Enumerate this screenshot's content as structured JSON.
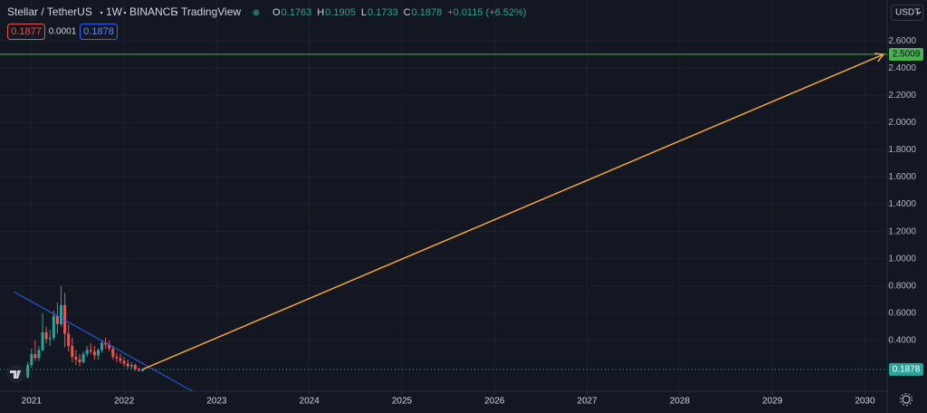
{
  "chart_data": {
    "type": "candlestick",
    "symbol": "Stellar / TetherUS",
    "interval": "1W",
    "exchange": "BINANCE",
    "source": "TradingView",
    "ohlc": [
      {
        "label": "O",
        "value": 0.1763
      },
      {
        "label": "H",
        "value": 0.1905
      },
      {
        "label": "L",
        "value": 0.1733
      },
      {
        "label": "C",
        "value": 0.1878
      }
    ],
    "change": "+0.0115 (+6.52%)",
    "sell": 0.1877,
    "spread": 0.0001,
    "buy": 0.1878,
    "currency": "USDT",
    "x": [
      2020.96,
      2021.0,
      2021.04,
      2021.08,
      2021.12,
      2021.16,
      2021.2,
      2021.24,
      2021.28,
      2021.32,
      2021.36,
      2021.4,
      2021.44,
      2021.48,
      2021.52,
      2021.56,
      2021.6,
      2021.64,
      2021.68,
      2021.72,
      2021.76,
      2021.8,
      2021.84,
      2021.88,
      2021.92,
      2021.96,
      2022.0,
      2022.04,
      2022.08,
      2022.12,
      2022.16,
      2022.2
    ],
    "open": [
      0.13,
      0.22,
      0.3,
      0.27,
      0.33,
      0.46,
      0.41,
      0.42,
      0.58,
      0.52,
      0.66,
      0.45,
      0.36,
      0.28,
      0.26,
      0.24,
      0.3,
      0.33,
      0.32,
      0.29,
      0.33,
      0.38,
      0.37,
      0.34,
      0.28,
      0.27,
      0.25,
      0.23,
      0.21,
      0.22,
      0.19,
      0.1763
    ],
    "high": [
      0.24,
      0.34,
      0.4,
      0.36,
      0.6,
      0.5,
      0.48,
      0.62,
      0.68,
      0.8,
      0.75,
      0.52,
      0.42,
      0.33,
      0.3,
      0.32,
      0.36,
      0.38,
      0.36,
      0.34,
      0.4,
      0.42,
      0.4,
      0.36,
      0.31,
      0.3,
      0.28,
      0.26,
      0.24,
      0.23,
      0.2,
      0.1905
    ],
    "low": [
      0.12,
      0.2,
      0.25,
      0.25,
      0.32,
      0.38,
      0.36,
      0.4,
      0.45,
      0.5,
      0.35,
      0.32,
      0.24,
      0.22,
      0.21,
      0.23,
      0.28,
      0.3,
      0.26,
      0.26,
      0.31,
      0.34,
      0.32,
      0.26,
      0.24,
      0.23,
      0.21,
      0.19,
      0.19,
      0.18,
      0.17,
      0.1733
    ],
    "close": [
      0.22,
      0.3,
      0.27,
      0.33,
      0.46,
      0.41,
      0.42,
      0.58,
      0.52,
      0.66,
      0.45,
      0.36,
      0.28,
      0.26,
      0.24,
      0.3,
      0.33,
      0.32,
      0.29,
      0.33,
      0.38,
      0.37,
      0.34,
      0.28,
      0.27,
      0.25,
      0.23,
      0.21,
      0.22,
      0.19,
      0.18,
      0.1878
    ],
    "up_color": "#26a69a",
    "down_color": "#ef5350",
    "last_price": 0.1878,
    "hline": {
      "value": 2.5009,
      "color": "#4caf50"
    },
    "arrow": {
      "x": [
        2022.2,
        2030.2
      ],
      "y": [
        0.1878,
        2.5009
      ],
      "color": "#f7a531"
    },
    "trendline": {
      "x": [
        2020.81,
        2022.74
      ],
      "y": [
        0.757,
        0.027
      ],
      "color": "#2962ff"
    },
    "xlim": [
      2020.66,
      2030.24
    ],
    "ylim": [
      0.027,
      2.9
    ],
    "xticks": [
      2021,
      2022,
      2023,
      2024,
      2025,
      2026,
      2027,
      2028,
      2029,
      2030
    ],
    "yticks": [
      {
        "value": 0.4,
        "label": "0.4000"
      },
      {
        "value": 0.6,
        "label": "0.6000"
      },
      {
        "value": 0.8,
        "label": "0.8000"
      },
      {
        "value": 1.0,
        "label": "1.0000"
      },
      {
        "value": 1.2,
        "label": "1.2000"
      },
      {
        "value": 1.4,
        "label": "1.4000"
      },
      {
        "value": 1.6,
        "label": "1.6000"
      },
      {
        "value": 1.8,
        "label": "1.8000"
      },
      {
        "value": 2.0,
        "label": "2.0000"
      },
      {
        "value": 2.2,
        "label": "2.2000"
      },
      {
        "value": 2.4,
        "label": "2.4000"
      },
      {
        "value": 2.6,
        "label": "2.6000"
      }
    ],
    "grid": true
  }
}
